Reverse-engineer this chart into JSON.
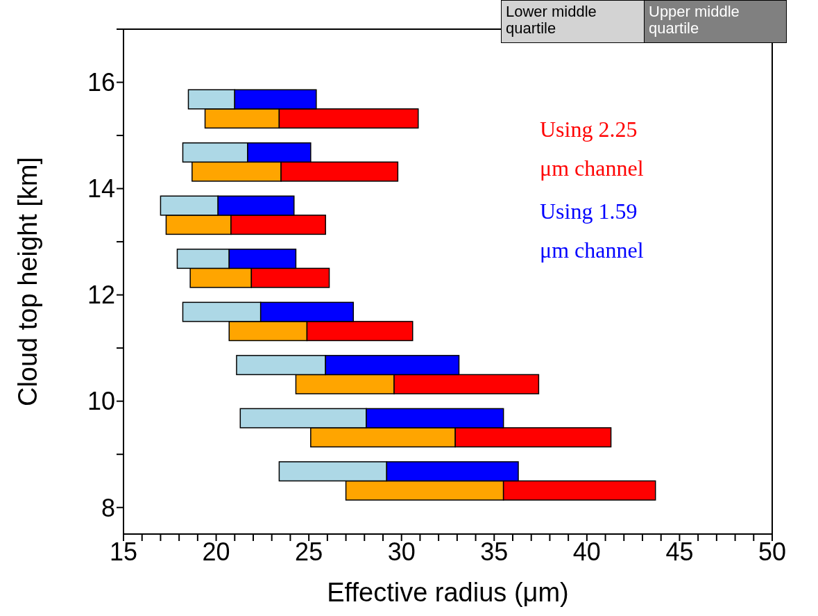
{
  "chart_data": {
    "type": "bar",
    "orientation": "horizontal",
    "xlabel": "Effective radius (μm)",
    "ylabel": "Cloud top height [km]",
    "xlim": [
      15,
      50
    ],
    "xticks": [
      15,
      {
        "value": 16,
        "label": null
      },
      {
        "value": 17,
        "label": null
      },
      {
        "value": 18,
        "label": null
      },
      {
        "value": 19,
        "label": null
      },
      20,
      {
        "value": 21,
        "label": null
      },
      {
        "value": 22,
        "label": null
      },
      {
        "value": 23,
        "label": null
      },
      {
        "value": 24,
        "label": null
      },
      25,
      {
        "value": 26,
        "label": null
      },
      {
        "value": 27,
        "label": null
      },
      {
        "value": 28,
        "label": null
      },
      {
        "value": 29,
        "label": null
      },
      30,
      {
        "value": 31,
        "label": null
      },
      {
        "value": 32,
        "label": null
      },
      {
        "value": 33,
        "label": null
      },
      {
        "value": 34,
        "label": null
      },
      35,
      {
        "value": 36,
        "label": null
      },
      {
        "value": 37,
        "label": null
      },
      {
        "value": 38,
        "label": null
      },
      {
        "value": 39,
        "label": null
      },
      40,
      {
        "value": 41,
        "label": null
      },
      {
        "value": 42,
        "label": null
      },
      {
        "value": 43,
        "label": null
      },
      {
        "value": 44,
        "label": null
      },
      45,
      {
        "value": 46,
        "label": null
      },
      {
        "value": 47,
        "label": null
      },
      {
        "value": 48,
        "label": null
      },
      {
        "value": 49,
        "label": null
      },
      50
    ],
    "ylim": [
      7.5,
      17
    ],
    "yticks": [
      8,
      {
        "value": 9,
        "label": null
      },
      10,
      {
        "value": 11,
        "label": null
      },
      12,
      {
        "value": 13,
        "label": null
      },
      14,
      {
        "value": 15,
        "label": null
      },
      16,
      {
        "value": 17,
        "label": null
      }
    ],
    "annotations": [
      "Lower middle quartile",
      "Upper middle quartile"
    ],
    "series": [
      {
        "color": "#ffa500",
        "x": [
          15.32,
          14.32,
          13.32,
          12.32,
          11.32,
          10.32,
          9.32,
          8.32
        ],
        "base": [
          19.4,
          18.7,
          17.3,
          18.6,
          20.7,
          24.3,
          25.1,
          27.0
        ],
        "values": [
          4.0,
          4.8,
          3.5,
          3.3,
          4.2,
          5.3,
          7.8,
          8.5
        ]
      },
      {
        "name": "Using 2.25 μm channel",
        "color": "#ff0000",
        "x": [
          15.32,
          14.32,
          13.32,
          12.32,
          11.32,
          10.32,
          9.32,
          8.32
        ],
        "base": [
          23.4,
          23.5,
          20.8,
          21.9,
          24.9,
          29.6,
          32.9,
          35.5
        ],
        "values": [
          7.5,
          6.3,
          5.1,
          4.2,
          5.7,
          7.8,
          8.4,
          8.2
        ]
      },
      {
        "color": "#add8e6",
        "x": [
          15.68,
          14.68,
          13.68,
          12.68,
          11.68,
          10.68,
          9.68,
          8.68
        ],
        "base": [
          18.5,
          18.2,
          17.0,
          17.9,
          18.2,
          21.1,
          21.3,
          23.4
        ],
        "values": [
          2.5,
          3.5,
          3.1,
          2.8,
          4.2,
          4.8,
          6.8,
          5.8
        ]
      },
      {
        "name": "Using 1.59 μm channel",
        "color": "#0000ff",
        "x": [
          15.68,
          14.68,
          13.68,
          12.68,
          11.68,
          10.68,
          9.68,
          8.68
        ],
        "base": [
          21.0,
          21.7,
          20.1,
          20.7,
          22.4,
          25.9,
          28.1,
          29.2
        ],
        "values": [
          4.4,
          3.4,
          4.1,
          3.6,
          5.0,
          7.2,
          7.4,
          7.1
        ]
      }
    ]
  }
}
